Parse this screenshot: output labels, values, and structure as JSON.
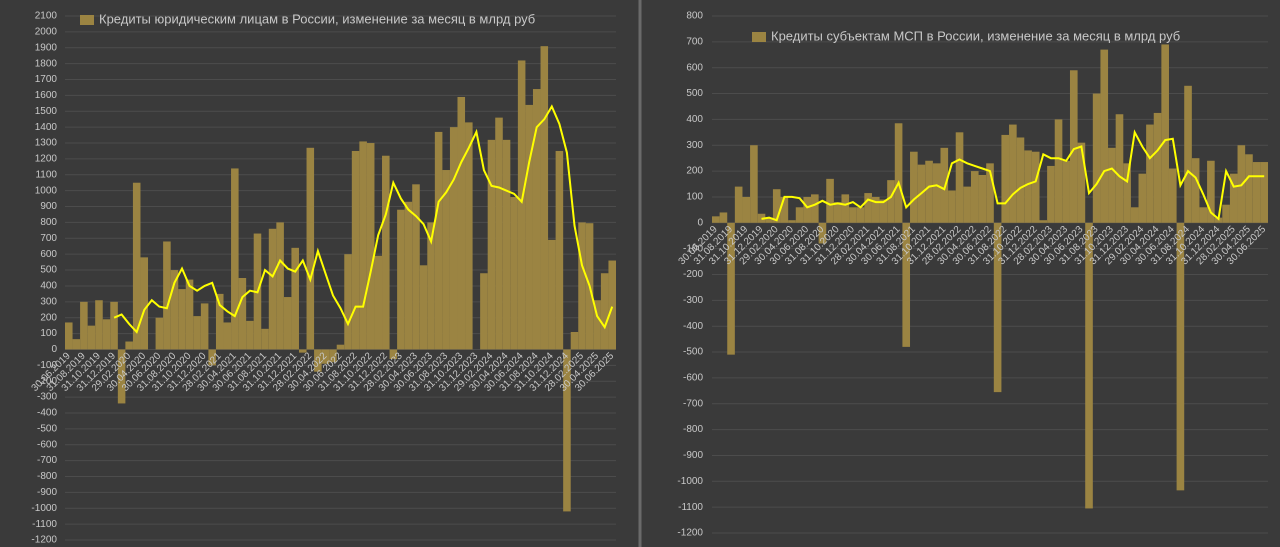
{
  "chart_data": [
    {
      "type": "bar",
      "categories": [
        "30.06.2019",
        null,
        "31.08.2019",
        null,
        "31.10.2019",
        null,
        "31.12.2019",
        null,
        "29.02.2020",
        null,
        "30.04.2020",
        null,
        "30.06.2020",
        null,
        "31.08.2020",
        null,
        "31.10.2020",
        null,
        "31.12.2020",
        null,
        "28.02.2021",
        null,
        "30.04.2021",
        null,
        "30.06.2021",
        null,
        "31.08.2021",
        null,
        "31.10.2021",
        null,
        "31.12.2021",
        null,
        "28.02.2022",
        null,
        "30.04.2022",
        null,
        "30.06.2022",
        null,
        "31.08.2022",
        null,
        "31.10.2022",
        null,
        "31.12.2022",
        null,
        "28.02.2023",
        null,
        "30.04.2023",
        null,
        "30.06.2023",
        null,
        "31.08.2023",
        null,
        "31.10.2023",
        null,
        "31.12.2023",
        null,
        "29.02.2024",
        null,
        "30.04.2024",
        null,
        "30.06.2024",
        null,
        "31.08.2024",
        null,
        "31.10.2024",
        null,
        "31.12.2024",
        null,
        "28.02.2025",
        null,
        "30.04.2025",
        null,
        "30.06.2025"
      ],
      "series": [
        {
          "name": "Кредиты юридическим лицам в России, изменение за месяц в млрд руб",
          "color": "#9b8442",
          "values": [
            170,
            65,
            300,
            150,
            310,
            190,
            300,
            -340,
            50,
            1050,
            580,
            0,
            200,
            680,
            500,
            380,
            440,
            210,
            290,
            -100,
            350,
            170,
            1140,
            450,
            180,
            730,
            130,
            760,
            800,
            330,
            640,
            -20,
            1270,
            -140,
            -90,
            -80,
            30,
            600,
            1250,
            1310,
            1300,
            590,
            1220,
            -60,
            880,
            930,
            1040,
            530,
            800,
            1370,
            1130,
            1400,
            1590,
            1430,
            0,
            480,
            1320,
            1460,
            1320,
            960,
            1820,
            1540,
            1640,
            1910,
            690,
            1250,
            -1020,
            110,
            800,
            795,
            310,
            480,
            560
          ]
        }
      ],
      "trend": {
        "color": "#ffff00",
        "values": [
          null,
          null,
          null,
          null,
          null,
          null,
          200,
          220,
          160,
          110,
          250,
          310,
          270,
          260,
          420,
          510,
          400,
          370,
          400,
          420,
          280,
          240,
          210,
          330,
          370,
          360,
          500,
          460,
          560,
          510,
          490,
          560,
          440,
          620,
          480,
          340,
          260,
          160,
          270,
          270,
          490,
          720,
          850,
          1050,
          950,
          880,
          840,
          790,
          680,
          930,
          990,
          1070,
          1180,
          1270,
          1370,
          1130,
          1030,
          1020,
          1000,
          980,
          930,
          1180,
          1400,
          1450,
          1530,
          1420,
          1240,
          780,
          530,
          400,
          210,
          140,
          270
        ]
      },
      "ylim": [
        -1200,
        2100
      ],
      "yticks": [
        -1200,
        -1100,
        -1000,
        -900,
        -800,
        -700,
        -600,
        -500,
        -400,
        -300,
        -200,
        -100,
        0,
        100,
        200,
        300,
        400,
        500,
        600,
        700,
        800,
        900,
        1000,
        1100,
        1200,
        1300,
        1400,
        1500,
        1600,
        1700,
        1800,
        1900,
        2000,
        2100
      ],
      "grid": true
    },
    {
      "type": "bar",
      "categories": [
        "30.06.2019",
        null,
        "31.08.2019",
        null,
        "31.10.2019",
        null,
        "31.12.2019",
        null,
        "29.02.2020",
        null,
        "30.04.2020",
        null,
        "30.06.2020",
        null,
        "31.08.2020",
        null,
        "31.10.2020",
        null,
        "31.12.2020",
        null,
        "28.02.2021",
        null,
        "30.04.2021",
        null,
        "30.06.2021",
        null,
        "31.08.2021",
        null,
        "31.10.2021",
        null,
        "31.12.2021",
        null,
        "28.02.2022",
        null,
        "30.04.2022",
        null,
        "30.06.2022",
        null,
        "31.08.2022",
        null,
        "31.10.2022",
        null,
        "31.12.2022",
        null,
        "28.02.2023",
        null,
        "30.04.2023",
        null,
        "30.06.2023",
        null,
        "31.08.2023",
        null,
        "31.10.2023",
        null,
        "31.12.2023",
        null,
        "29.02.2024",
        null,
        "30.04.2024",
        null,
        "30.06.2024",
        null,
        "31.08.2024",
        null,
        "31.10.2024",
        null,
        "31.12.2024",
        null,
        "28.02.2025",
        null,
        "30.04.2025",
        null,
        "30.06.2025"
      ],
      "series": [
        {
          "name": "Кредиты субъектам МСП  в России, изменение за месяц в млрд руб",
          "color": "#9b8442",
          "values": [
            25,
            40,
            -510,
            140,
            100,
            300,
            35,
            20,
            130,
            100,
            10,
            60,
            100,
            110,
            -80,
            170,
            80,
            110,
            60,
            60,
            115,
            100,
            90,
            165,
            385,
            -480,
            275,
            225,
            240,
            230,
            290,
            125,
            350,
            140,
            200,
            185,
            230,
            -655,
            340,
            380,
            330,
            280,
            275,
            10,
            220,
            400,
            240,
            590,
            310,
            -1105,
            500,
            670,
            290,
            420,
            230,
            60,
            190,
            380,
            425,
            690,
            210,
            -1035,
            530,
            250,
            60,
            240,
            20,
            70,
            190,
            300,
            265,
            235,
            235
          ]
        }
      ],
      "trend": {
        "color": "#ffff00",
        "values": [
          null,
          null,
          null,
          null,
          null,
          null,
          15,
          20,
          10,
          100,
          100,
          95,
          60,
          70,
          85,
          70,
          75,
          70,
          80,
          60,
          90,
          80,
          80,
          100,
          155,
          60,
          90,
          115,
          140,
          145,
          130,
          230,
          245,
          230,
          220,
          210,
          200,
          75,
          75,
          110,
          135,
          150,
          160,
          265,
          250,
          250,
          240,
          285,
          295,
          115,
          150,
          200,
          210,
          180,
          160,
          350,
          295,
          250,
          280,
          320,
          325,
          145,
          200,
          175,
          110,
          40,
          15,
          200,
          140,
          145,
          180,
          180,
          180
        ]
      },
      "ylim": [
        -1200,
        800
      ],
      "yticks": [
        -1200,
        -1100,
        -1000,
        -900,
        -800,
        -700,
        -600,
        -500,
        -400,
        -300,
        -200,
        -100,
        0,
        100,
        200,
        300,
        400,
        500,
        600,
        700,
        800
      ],
      "grid": true
    }
  ]
}
